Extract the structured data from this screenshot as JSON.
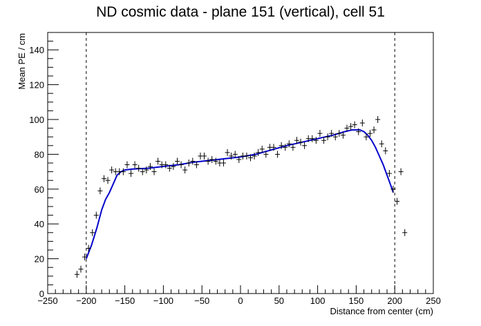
{
  "chart_data": {
    "type": "scatter",
    "title": "ND cosmic data - plane 151 (vertical), cell 51",
    "xlabel": "Distance from center (cm)",
    "ylabel": "Mean PE / cm",
    "xlim": [
      -250,
      250
    ],
    "ylim": [
      0,
      150
    ],
    "x_ticks": [
      -250,
      -200,
      -150,
      -100,
      -50,
      0,
      50,
      100,
      150,
      200,
      250
    ],
    "y_ticks": [
      0,
      20,
      40,
      60,
      80,
      100,
      120,
      140
    ],
    "grid": false,
    "legend": "none",
    "marker_color": "#000000",
    "line_color": "#0000cc",
    "guide_lines_x": [
      -200,
      200
    ],
    "series": [
      {
        "type": "points",
        "x": [
          -212,
          -207,
          -202,
          -197,
          -192,
          -187,
          -182,
          -177,
          -172,
          -167,
          -162,
          -157,
          -152,
          -147,
          -142,
          -137,
          -132,
          -127,
          -122,
          -117,
          -112,
          -107,
          -102,
          -97,
          -92,
          -87,
          -82,
          -77,
          -72,
          -67,
          -62,
          -57,
          -52,
          -47,
          -42,
          -37,
          -32,
          -27,
          -22,
          -17,
          -12,
          -7,
          -2,
          3,
          8,
          13,
          18,
          23,
          28,
          33,
          38,
          43,
          48,
          53,
          58,
          63,
          68,
          73,
          78,
          83,
          88,
          93,
          98,
          103,
          108,
          113,
          118,
          123,
          128,
          133,
          138,
          143,
          148,
          153,
          158,
          163,
          168,
          173,
          178,
          183,
          188,
          193,
          198,
          203,
          208,
          213
        ],
        "y": [
          11,
          14,
          21,
          26,
          35,
          45,
          59,
          66,
          65,
          71,
          70,
          70,
          70,
          74,
          69,
          74,
          72,
          70,
          71,
          73,
          70,
          76,
          74,
          74,
          72,
          73,
          76,
          74,
          71,
          75,
          76,
          74,
          79,
          79,
          76,
          77,
          76,
          75,
          75,
          81,
          79,
          80,
          77,
          79,
          79,
          78,
          79,
          81,
          83,
          80,
          84,
          84,
          80,
          85,
          84,
          86,
          84,
          88,
          87,
          85,
          89,
          89,
          88,
          92,
          88,
          90,
          92,
          90,
          92,
          91,
          95,
          96,
          97,
          93,
          98,
          90,
          92,
          94,
          100,
          86,
          82,
          69,
          60,
          53,
          70,
          35
        ]
      },
      {
        "type": "line",
        "x": [
          -200,
          -193,
          -186,
          -180,
          -175,
          -170,
          -165,
          -160,
          -155,
          -150,
          -140,
          -120,
          -100,
          -80,
          -60,
          -40,
          -20,
          0,
          20,
          40,
          60,
          80,
          100,
          120,
          135,
          145,
          150,
          155,
          160,
          165,
          170,
          175,
          180,
          185,
          190,
          195,
          198
        ],
        "y": [
          20,
          28,
          38,
          48,
          54,
          58,
          63,
          68,
          70,
          71,
          71.5,
          72,
          73,
          74,
          75.5,
          76.5,
          77.5,
          78.5,
          80,
          82.5,
          85,
          87,
          89,
          91,
          93,
          94,
          94,
          94,
          93,
          91,
          88,
          84,
          79,
          74,
          68,
          62,
          58
        ]
      }
    ]
  }
}
